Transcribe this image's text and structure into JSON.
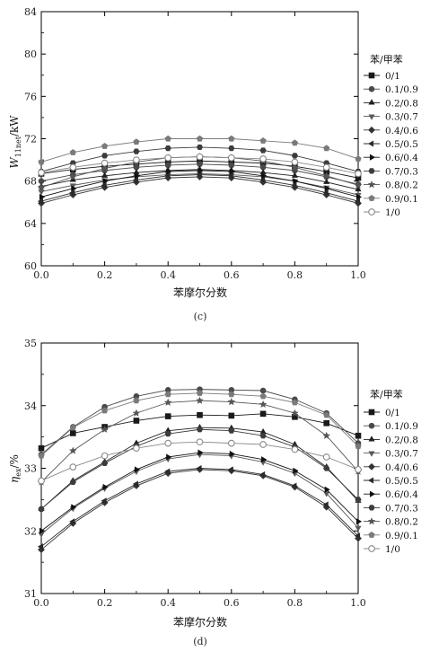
{
  "panels": [
    {
      "caption": "(c)"
    },
    {
      "caption": "(d)"
    }
  ],
  "chart_data": [
    {
      "type": "line",
      "ylabel": "W_11net/kW",
      "ylabel_main": "W",
      "ylabel_sub": "11net",
      "ylabel_unit": "/kW",
      "xlabel": "苯摩尔分数",
      "xlim": [
        0.0,
        1.0
      ],
      "ylim": [
        60,
        84
      ],
      "x_ticks": [
        "0.0",
        "0.2",
        "0.4",
        "0.6",
        "0.8",
        "1.0"
      ],
      "y_ticks": [
        "60",
        "64",
        "68",
        "72",
        "76",
        "80",
        "84"
      ],
      "legend_title": "苯/甲苯",
      "legend_position": "right",
      "x": [
        0.0,
        0.1,
        0.2,
        0.3,
        0.4,
        0.5,
        0.6,
        0.7,
        0.8,
        0.9,
        1.0
      ],
      "series": [
        {
          "name": "0/1",
          "marker": "square",
          "values": [
            68.7,
            69.1,
            69.4,
            69.6,
            69.8,
            69.9,
            69.8,
            69.7,
            69.4,
            68.9,
            68.3
          ]
        },
        {
          "name": "0.1/0.9",
          "marker": "circle",
          "values": [
            68.0,
            68.6,
            69.0,
            69.3,
            69.5,
            69.6,
            69.5,
            69.3,
            69.0,
            68.4,
            67.7
          ]
        },
        {
          "name": "0.2/0.8",
          "marker": "triangle-up",
          "values": [
            67.5,
            68.1,
            68.5,
            68.8,
            69.0,
            69.1,
            69.0,
            68.8,
            68.5,
            67.9,
            67.2
          ]
        },
        {
          "name": "0.3/0.7",
          "marker": "triangle-down",
          "values": [
            67.0,
            67.6,
            68.1,
            68.4,
            68.6,
            68.7,
            68.6,
            68.4,
            68.0,
            67.4,
            66.7
          ]
        },
        {
          "name": "0.4/0.6",
          "marker": "diamond",
          "values": [
            65.9,
            66.7,
            67.4,
            67.9,
            68.3,
            68.4,
            68.3,
            67.9,
            67.4,
            66.7,
            65.9
          ]
        },
        {
          "name": "0.5/0.5",
          "marker": "triangle-left",
          "values": [
            66.1,
            66.9,
            67.6,
            68.1,
            68.5,
            68.6,
            68.5,
            68.1,
            67.6,
            66.9,
            66.1
          ]
        },
        {
          "name": "0.6/0.4",
          "marker": "triangle-right",
          "values": [
            66.5,
            67.3,
            68.0,
            68.5,
            68.9,
            69.0,
            68.9,
            68.5,
            68.0,
            67.3,
            66.5
          ]
        },
        {
          "name": "0.7/0.3",
          "marker": "hexagon",
          "values": [
            68.9,
            69.7,
            70.4,
            70.8,
            71.1,
            71.2,
            71.1,
            70.9,
            70.4,
            69.7,
            68.9
          ]
        },
        {
          "name": "0.8/0.2",
          "marker": "star",
          "values": [
            67.4,
            68.4,
            69.2,
            69.8,
            70.2,
            70.3,
            70.2,
            69.9,
            69.3,
            68.5,
            67.6
          ]
        },
        {
          "name": "0.9/0.1",
          "marker": "pentagon",
          "values": [
            69.8,
            70.7,
            71.3,
            71.7,
            72.0,
            72.0,
            72.0,
            71.8,
            71.6,
            71.1,
            70.1
          ]
        },
        {
          "name": "1/0",
          "marker": "open-circle",
          "values": [
            68.8,
            69.3,
            69.7,
            70.0,
            70.2,
            70.3,
            70.2,
            70.1,
            69.8,
            69.3,
            68.7
          ]
        }
      ]
    },
    {
      "type": "line",
      "ylabel": "η_ex/%",
      "ylabel_main": "η",
      "ylabel_sub": "ex",
      "ylabel_unit": "/%",
      "xlabel": "苯摩尔分数",
      "xlim": [
        0.0,
        1.0
      ],
      "ylim": [
        31,
        35
      ],
      "x_ticks": [
        "0.0",
        "0.2",
        "0.4",
        "0.6",
        "0.8",
        "1.0"
      ],
      "y_ticks": [
        "31",
        "32",
        "33",
        "34",
        "35"
      ],
      "legend_title": "苯/甲苯",
      "legend_position": "right",
      "x": [
        0.0,
        0.1,
        0.2,
        0.3,
        0.4,
        0.5,
        0.6,
        0.7,
        0.8,
        0.9,
        1.0
      ],
      "series": [
        {
          "name": "0/1",
          "marker": "square",
          "values": [
            33.32,
            33.56,
            33.66,
            33.76,
            33.83,
            33.85,
            33.84,
            33.87,
            33.82,
            33.72,
            33.52
          ]
        },
        {
          "name": "0.1/0.9",
          "marker": "circle",
          "values": [
            33.22,
            33.66,
            33.98,
            34.15,
            34.25,
            34.26,
            34.25,
            34.24,
            34.1,
            33.88,
            33.4
          ]
        },
        {
          "name": "0.2/0.8",
          "marker": "triangle-up",
          "values": [
            32.35,
            32.8,
            33.1,
            33.4,
            33.6,
            33.65,
            33.64,
            33.58,
            33.38,
            33.02,
            32.48
          ]
        },
        {
          "name": "0.3/0.7",
          "marker": "triangle-down",
          "values": [
            31.95,
            32.36,
            32.68,
            32.95,
            33.15,
            33.22,
            33.2,
            33.1,
            32.92,
            32.6,
            32.05
          ]
        },
        {
          "name": "0.4/0.6",
          "marker": "diamond",
          "values": [
            31.7,
            32.12,
            32.45,
            32.72,
            32.92,
            32.98,
            32.96,
            32.88,
            32.7,
            32.38,
            31.88
          ]
        },
        {
          "name": "0.5/0.5",
          "marker": "triangle-left",
          "values": [
            31.75,
            32.15,
            32.48,
            32.75,
            32.95,
            33.0,
            32.98,
            32.9,
            32.72,
            32.42,
            31.92
          ]
        },
        {
          "name": "0.6/0.4",
          "marker": "triangle-right",
          "values": [
            32.0,
            32.38,
            32.7,
            32.98,
            33.18,
            33.25,
            33.23,
            33.14,
            32.96,
            32.66,
            32.15
          ]
        },
        {
          "name": "0.7/0.3",
          "marker": "hexagon",
          "values": [
            32.35,
            32.78,
            33.08,
            33.35,
            33.55,
            33.62,
            33.6,
            33.52,
            33.34,
            33.0,
            32.5
          ]
        },
        {
          "name": "0.8/0.2",
          "marker": "star",
          "values": [
            32.78,
            33.28,
            33.62,
            33.88,
            34.05,
            34.08,
            34.06,
            34.02,
            33.88,
            33.52,
            32.95
          ]
        },
        {
          "name": "0.9/0.1",
          "marker": "pentagon",
          "values": [
            33.2,
            33.65,
            33.92,
            34.08,
            34.18,
            34.2,
            34.18,
            34.15,
            34.05,
            33.85,
            33.35
          ]
        },
        {
          "name": "1/0",
          "marker": "open-circle",
          "values": [
            32.8,
            33.02,
            33.2,
            33.32,
            33.4,
            33.42,
            33.4,
            33.38,
            33.3,
            33.18,
            32.98
          ]
        }
      ]
    }
  ]
}
